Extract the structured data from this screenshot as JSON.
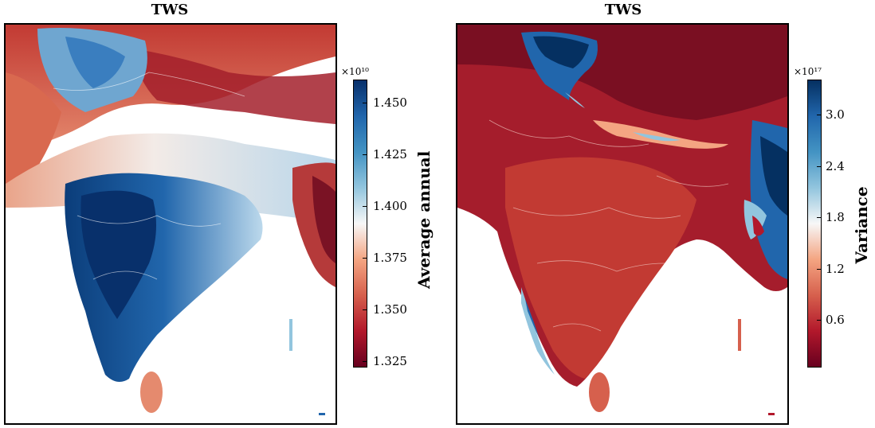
{
  "left_panel": {
    "title": "TWS",
    "colorbar": {
      "multiplier": "×10¹⁰",
      "label": "Average annual",
      "ticks": [
        "1.450",
        "1.425",
        "1.400",
        "1.375",
        "1.350",
        "1.325"
      ],
      "colors": [
        "#08306b",
        "#2166ac",
        "#4393c3",
        "#92c5de",
        "#f7f7f7",
        "#f4a582",
        "#d6604d",
        "#b2182b",
        "#67001f"
      ]
    }
  },
  "right_panel": {
    "title": "TWS",
    "colorbar": {
      "multiplier": "×10¹⁷",
      "label": "Variance",
      "ticks": [
        "3.0",
        "2.4",
        "1.8",
        "1.2",
        "0.6"
      ],
      "colors": [
        "#053061",
        "#2166ac",
        "#4393c3",
        "#92c5de",
        "#f7f7f7",
        "#f4a582",
        "#d6604d",
        "#b2182b",
        "#67001f"
      ]
    }
  }
}
